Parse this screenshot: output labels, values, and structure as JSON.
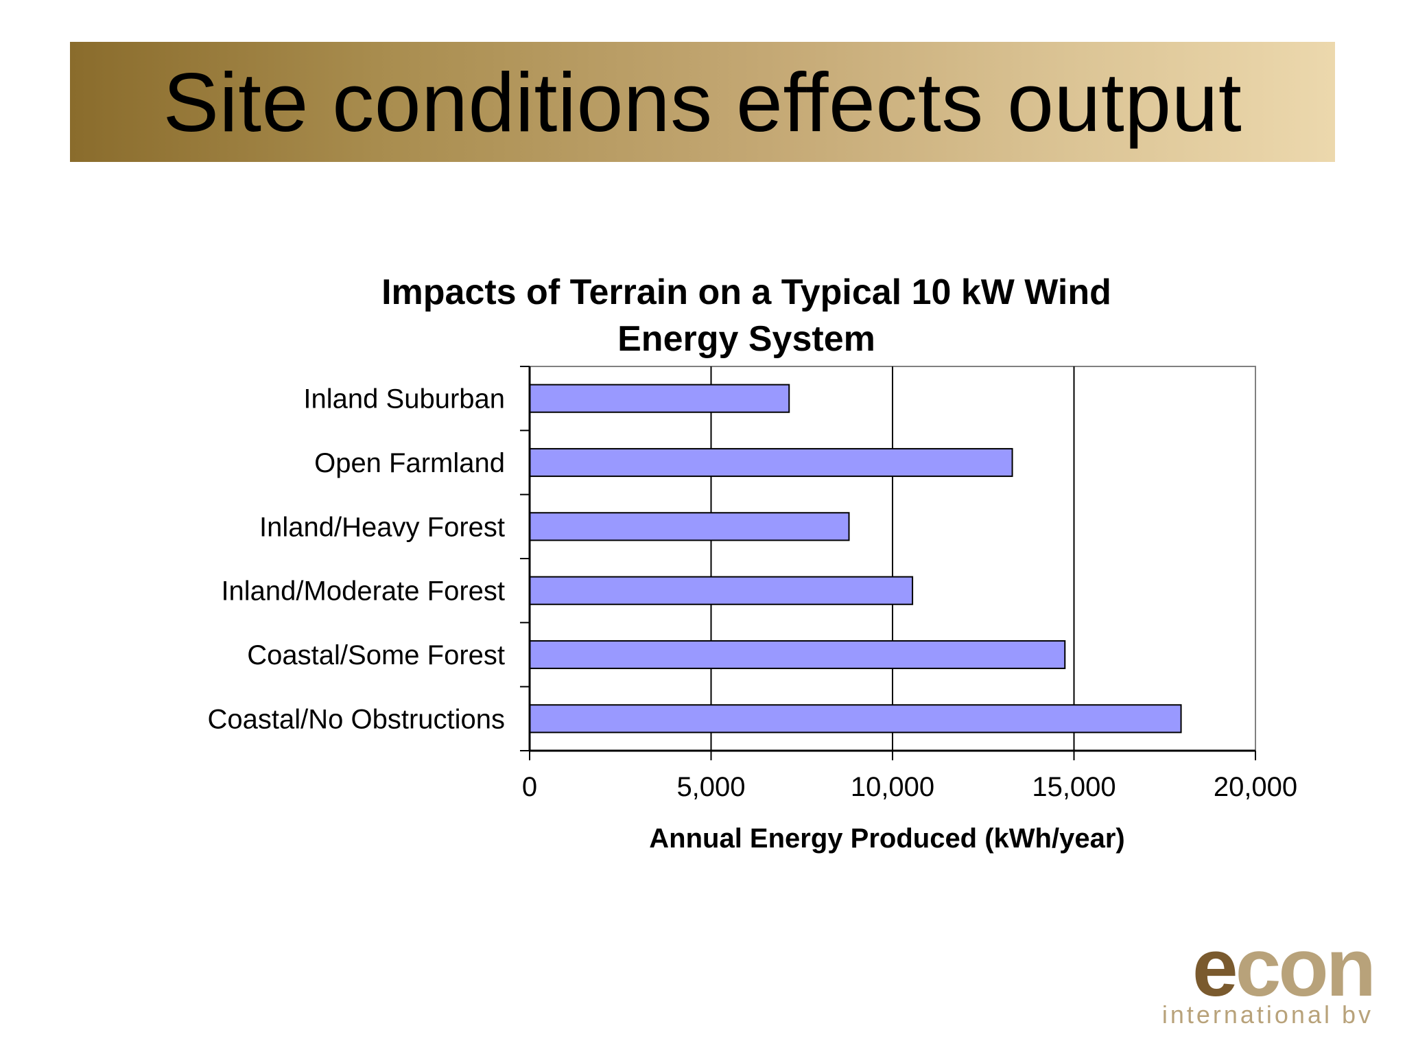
{
  "slide": {
    "title": "Site conditions effects output"
  },
  "chart_data": {
    "type": "bar",
    "orientation": "horizontal",
    "title_lines": [
      "Impacts of Terrain on a Typical 10 kW Wind",
      "Energy System"
    ],
    "categories": [
      "Inland Suburban",
      "Open Farmland",
      "Inland/Heavy Forest",
      "Inland/Moderate Forest",
      "Coastal/Some Forest",
      "Coastal/No Obstructions"
    ],
    "values": [
      7150,
      13300,
      8800,
      10550,
      14750,
      17950
    ],
    "xlabel": "Annual Energy Produced (kWh/year)",
    "ylabel": "",
    "xlim": [
      0,
      20000
    ],
    "xticks": [
      0,
      5000,
      10000,
      15000,
      20000
    ],
    "xtick_labels": [
      "0",
      "5,000",
      "10,000",
      "15,000",
      "20,000"
    ],
    "grid": "vertical major gridlines",
    "legend": "none",
    "bar_color": "#9999ff",
    "bar_edge_color": "#000000"
  },
  "logo": {
    "word_first": "e",
    "word_rest": "con",
    "subtitle": "international bv"
  },
  "colors": {
    "title_band_dark": "#8a6c2c",
    "title_band_light": "#ecd8ad",
    "logo_dark": "#7a5a2e",
    "logo_light": "#b8a27a"
  }
}
